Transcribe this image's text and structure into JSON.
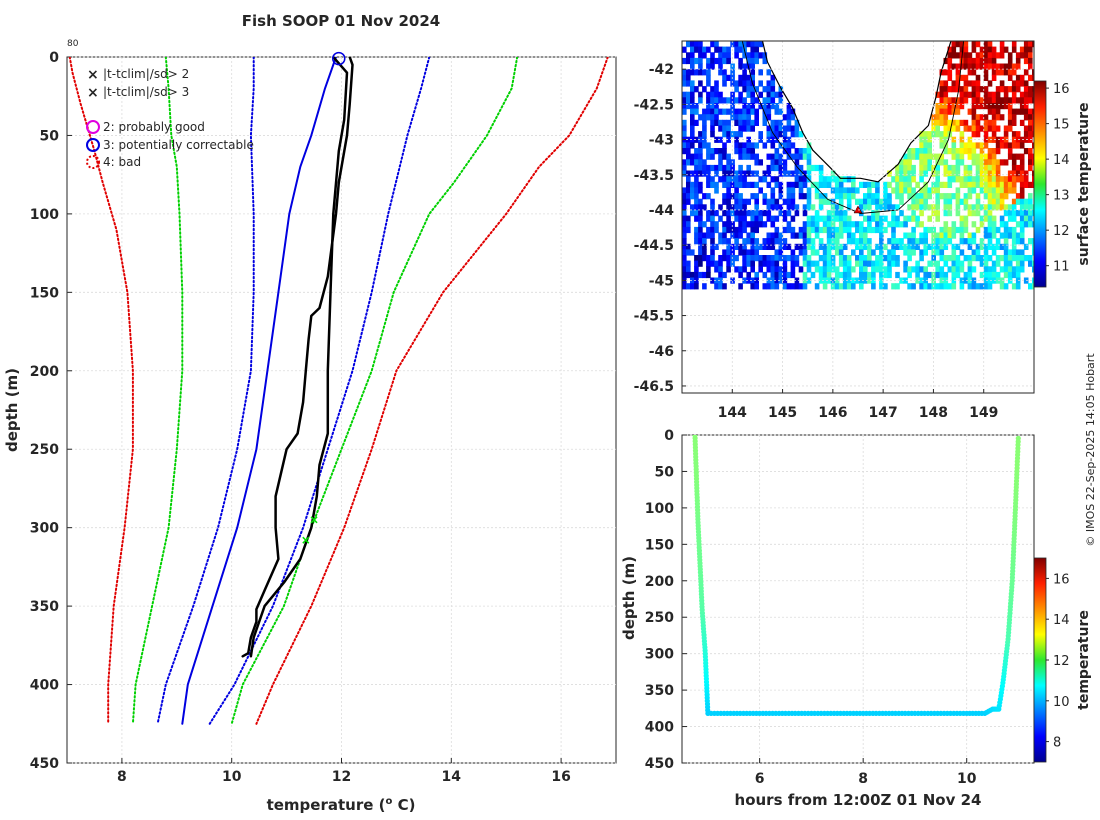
{
  "figure": {
    "copyright": "© IMOS 22-Sep-2025 14:05 Hobart"
  },
  "chart_data": [
    {
      "type": "line",
      "title": "Fish SOOP 01 Nov 2024",
      "xlabel": "temperature (",
      "xlabel_sup": "o",
      "xlabel_tail": " C)",
      "ylabel": "depth (m)",
      "xlim": [
        7,
        17
      ],
      "ylim": [
        450,
        0
      ],
      "xticks": [
        8,
        10,
        12,
        14,
        16
      ],
      "yticks": [
        0,
        50,
        100,
        150,
        200,
        250,
        300,
        350,
        400,
        450
      ],
      "corner_label": "80",
      "legend": [
        {
          "marker": "x",
          "color": "#00e000",
          "label": "|t-tclim|/sd> 2"
        },
        {
          "marker": "x",
          "color": "#e00000",
          "label": "|t-tclim|/sd> 3"
        },
        {
          "marker": "o",
          "color": "#e000e0",
          "label": "2: probably good"
        },
        {
          "marker": "o",
          "color": "#0000e0",
          "label": "3: potentially correctable"
        },
        {
          "marker": "o-dotted",
          "color": "#e00000",
          "label": "4: bad"
        }
      ],
      "series": [
        {
          "name": "clim -3sd",
          "color": "#e00000",
          "style": "dotted",
          "depth": [
            0,
            10,
            30,
            60,
            80,
            110,
            150,
            200,
            250,
            300,
            350,
            400,
            425
          ],
          "temp": [
            7.05,
            7.1,
            7.25,
            7.5,
            7.65,
            7.9,
            8.1,
            8.2,
            8.2,
            8.05,
            7.85,
            7.75,
            7.75
          ]
        },
        {
          "name": "clim -2sd",
          "color": "#00d000",
          "style": "dotted",
          "depth": [
            0,
            20,
            50,
            70,
            100,
            150,
            200,
            250,
            300,
            350,
            400,
            425
          ],
          "temp": [
            8.8,
            8.85,
            8.9,
            9.0,
            9.05,
            9.1,
            9.1,
            9.0,
            8.85,
            8.55,
            8.25,
            8.2
          ]
        },
        {
          "name": "clim -1sd",
          "color": "#0000e0",
          "style": "dotted",
          "depth": [
            0,
            20,
            50,
            100,
            150,
            200,
            250,
            300,
            350,
            400,
            425
          ],
          "temp": [
            10.4,
            10.4,
            10.35,
            10.4,
            10.4,
            10.35,
            10.1,
            9.75,
            9.3,
            8.8,
            8.65
          ]
        },
        {
          "name": "clim mean",
          "color": "#0000e0",
          "style": "solid",
          "depth": [
            0,
            20,
            50,
            70,
            100,
            150,
            200,
            250,
            300,
            350,
            400,
            425
          ],
          "temp": [
            11.9,
            11.7,
            11.45,
            11.25,
            11.05,
            10.85,
            10.65,
            10.45,
            10.1,
            9.65,
            9.2,
            9.1
          ]
        },
        {
          "name": "clim +1sd",
          "color": "#0000e0",
          "style": "dotted",
          "depth": [
            0,
            20,
            50,
            100,
            150,
            200,
            250,
            300,
            350,
            400,
            425
          ],
          "temp": [
            13.6,
            13.45,
            13.2,
            12.85,
            12.55,
            12.2,
            11.75,
            11.3,
            10.75,
            10.05,
            9.6
          ]
        },
        {
          "name": "clim +2sd",
          "color": "#00d000",
          "style": "dotted",
          "depth": [
            0,
            20,
            50,
            80,
            100,
            150,
            200,
            250,
            300,
            350,
            400,
            425
          ],
          "temp": [
            15.2,
            15.1,
            14.65,
            14.05,
            13.6,
            12.95,
            12.55,
            12.0,
            11.45,
            10.95,
            10.2,
            10.0
          ]
        },
        {
          "name": "clim +3sd",
          "color": "#e00000",
          "style": "dotted",
          "depth": [
            0,
            20,
            50,
            70,
            100,
            150,
            200,
            250,
            300,
            350,
            400,
            425
          ],
          "temp": [
            16.85,
            16.65,
            16.15,
            15.6,
            15.0,
            13.85,
            13.0,
            12.55,
            12.05,
            11.45,
            10.75,
            10.45
          ]
        },
        {
          "name": "profile down",
          "color": "#000000",
          "style": "solid",
          "width": 2.5,
          "depth": [
            0,
            5,
            30,
            50,
            80,
            100,
            140,
            160,
            165,
            180,
            200,
            220,
            240,
            250,
            280,
            300,
            320,
            340,
            352,
            360,
            370,
            380,
            382
          ],
          "temp": [
            12.15,
            12.2,
            12.15,
            12.1,
            11.95,
            11.9,
            11.75,
            11.6,
            11.45,
            11.4,
            11.35,
            11.3,
            11.2,
            11.0,
            10.8,
            10.8,
            10.85,
            10.6,
            10.45,
            10.45,
            10.35,
            10.3,
            10.2
          ]
        },
        {
          "name": "profile up",
          "color": "#000000",
          "style": "solid",
          "width": 2.5,
          "depth": [
            0,
            10,
            40,
            60,
            100,
            150,
            200,
            240,
            260,
            280,
            300,
            320,
            335,
            350,
            370,
            382
          ],
          "temp": [
            11.85,
            12.1,
            12.05,
            11.95,
            11.85,
            11.8,
            11.75,
            11.75,
            11.6,
            11.55,
            11.45,
            11.25,
            10.95,
            10.6,
            10.4,
            10.35
          ]
        }
      ],
      "flags": [
        {
          "marker": "o",
          "color": "#0000e0",
          "temp": 11.95,
          "depth": 1
        },
        {
          "marker": "x",
          "color": "#00e000",
          "temp": 11.5,
          "depth": 295
        },
        {
          "marker": "x",
          "color": "#00e000",
          "temp": 11.35,
          "depth": 308
        }
      ]
    },
    {
      "type": "heatmap",
      "title": "",
      "xlabel": "",
      "ylabel": "",
      "xlim": [
        143,
        150
      ],
      "ylim": [
        -46.6,
        -41.6
      ],
      "xticks": [
        144,
        145,
        146,
        147,
        148,
        149
      ],
      "xtick_labels": [
        "144",
        "145",
        "146",
        "147",
        "148",
        "149"
      ],
      "yticks": [
        -42,
        -42.5,
        -43,
        -43.5,
        -44,
        -44.5,
        -45,
        -45.5,
        -46,
        -46.5
      ],
      "ytick_labels": [
        "-42",
        "-42.5",
        "-43",
        "-43.5",
        "-44",
        "-44.5",
        "-45",
        "-45.5",
        "-46",
        "-46.5"
      ],
      "data_lat_min": -45.1,
      "colorbar": {
        "label": "surface temperature",
        "range": [
          10.4,
          16.2
        ],
        "ticks": [
          11,
          12,
          13,
          14,
          15,
          16
        ]
      },
      "fields": [
        {
          "name": "north-east warm water",
          "lon": 149.3,
          "lat": -42.5,
          "spread_lon": 0.9,
          "spread_lat": 0.6,
          "temp": 15.8
        },
        {
          "name": "eastern shelf",
          "lon": 148.3,
          "lat": -43.3,
          "spread_lon": 0.6,
          "spread_lat": 0.5,
          "temp": 13.2
        },
        {
          "name": "western cool water",
          "lon": 143.5,
          "lat": -44.0,
          "spread_lon": 0.9,
          "spread_lat": 1.5,
          "temp": 11.3
        },
        {
          "name": "south-west cold patch",
          "lon": 143.3,
          "lat": -44.8,
          "spread_lon": 0.3,
          "spread_lat": 0.3,
          "temp": 10.5
        }
      ],
      "land_color": "#ffffff",
      "coast_lonlat": [
        [
          144.6,
          -41.6
        ],
        [
          144.7,
          -41.9
        ],
        [
          144.95,
          -42.25
        ],
        [
          145.2,
          -42.55
        ],
        [
          145.4,
          -42.9
        ],
        [
          145.6,
          -43.15
        ],
        [
          145.95,
          -43.4
        ],
        [
          146.15,
          -43.55
        ],
        [
          146.55,
          -43.55
        ],
        [
          146.9,
          -43.6
        ],
        [
          147.3,
          -43.35
        ],
        [
          147.55,
          -43.05
        ],
        [
          147.9,
          -42.8
        ],
        [
          148.05,
          -42.4
        ],
        [
          148.15,
          -42.05
        ],
        [
          148.35,
          -41.6
        ]
      ],
      "shelf_lonlat": [
        [
          144.2,
          -41.6
        ],
        [
          144.4,
          -42.2
        ],
        [
          144.8,
          -42.9
        ],
        [
          145.3,
          -43.4
        ],
        [
          145.9,
          -43.85
        ],
        [
          146.55,
          -44.05
        ],
        [
          147.3,
          -44.0
        ],
        [
          147.9,
          -43.6
        ],
        [
          148.3,
          -43.0
        ],
        [
          148.5,
          -42.3
        ],
        [
          148.6,
          -41.6
        ]
      ],
      "track": {
        "lon": 146.5,
        "lat": -44.0,
        "color": "#e00000"
      }
    },
    {
      "type": "scatter",
      "title": "",
      "xlabel": "hours from 12:00Z 01 Nov 24",
      "ylabel": "depth (m)",
      "xlim": [
        4.5,
        11.3
      ],
      "ylim": [
        450,
        0
      ],
      "xticks": [
        6,
        8,
        10
      ],
      "yticks": [
        0,
        50,
        100,
        150,
        200,
        250,
        300,
        350,
        400,
        450
      ],
      "colorbar": {
        "label": "temperature",
        "range": [
          7,
          17
        ],
        "ticks": [
          8,
          10,
          12,
          14,
          16
        ]
      },
      "x": [
        4.75,
        4.78,
        4.81,
        4.85,
        4.89,
        4.95,
        5.0,
        6.0,
        7.0,
        8.0,
        9.0,
        10.0,
        10.35,
        10.5,
        10.62,
        10.7,
        10.8,
        10.88,
        10.93,
        10.97,
        11.0
      ],
      "y": [
        0,
        60,
        120,
        180,
        240,
        300,
        382,
        382,
        382,
        382,
        382,
        382,
        382,
        376,
        376,
        340,
        280,
        200,
        120,
        50,
        0
      ],
      "temp": [
        12.1,
        12.05,
        11.9,
        11.8,
        11.6,
        11.1,
        10.3,
        10.3,
        10.3,
        10.3,
        10.3,
        10.3,
        10.3,
        10.4,
        10.5,
        10.8,
        11.5,
        11.8,
        12.0,
        12.1,
        12.1
      ]
    }
  ]
}
